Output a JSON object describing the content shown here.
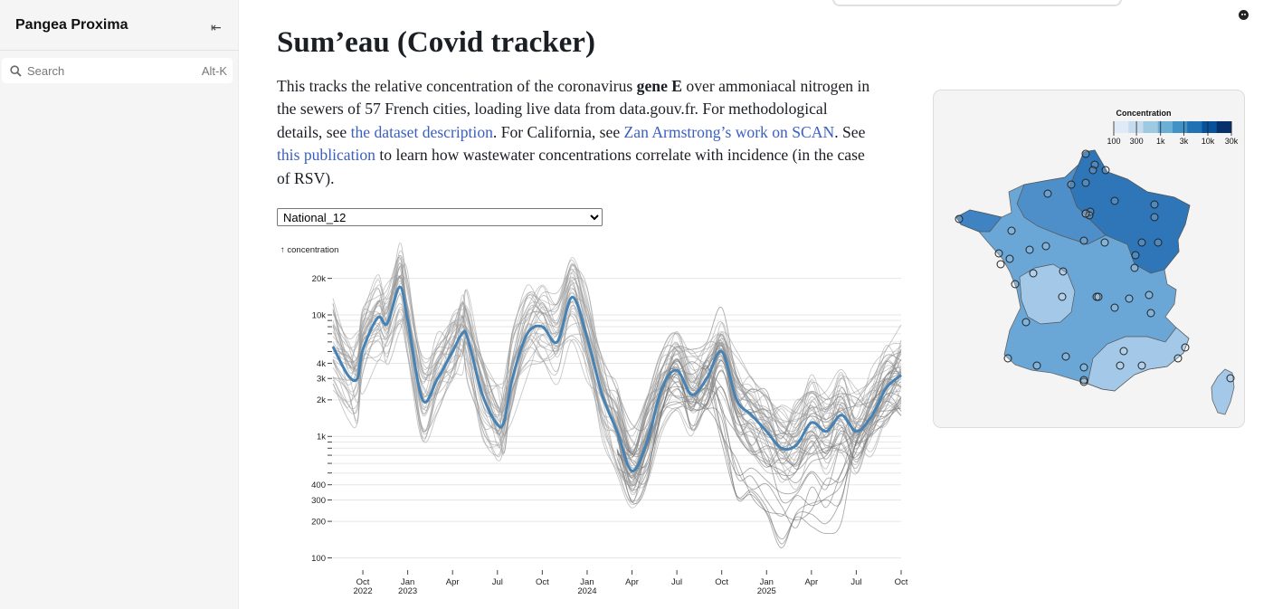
{
  "sidebar": {
    "brand": "Pangea Proxima",
    "collapse_glyph": "⇤",
    "search": {
      "placeholder": "Search",
      "shortcut": "Alt-K"
    }
  },
  "page": {
    "title": "Sum’eau (Covid tracker)",
    "intro": {
      "p1": "This tracks the relative concentration of the coronavirus ",
      "bold": "gene E",
      "p2": " over ammoniacal nitrogen in the sewers of 57 French cities, loading live data from data.gouv.fr. For methodological details, see ",
      "link1": "the dataset description",
      "p3": ". For California, see ",
      "link2": "Zan Armstrong’s work on SCAN",
      "p4": ". See ",
      "link3": "this publication",
      "p5": " to learn how wastewater concentrations correlate with incidence (in the case of RSV)."
    },
    "station_select": {
      "selected": "National_12"
    }
  },
  "colors": {
    "accent": "#4682b4",
    "link": "#3b5fc0",
    "gray_line": "#888888"
  },
  "chart_data": {
    "type": "line",
    "ylabel": "↑ concentration",
    "yscale": "log",
    "ylim": [
      85,
      24000
    ],
    "yticks": [
      {
        "v": 100,
        "label": "100"
      },
      {
        "v": 200,
        "label": "200"
      },
      {
        "v": 300,
        "label": "300"
      },
      {
        "v": 400,
        "label": "400"
      },
      {
        "v": 500,
        "label": ""
      },
      {
        "v": 600,
        "label": ""
      },
      {
        "v": 700,
        "label": ""
      },
      {
        "v": 800,
        "label": ""
      },
      {
        "v": 900,
        "label": ""
      },
      {
        "v": 1000,
        "label": "1k"
      },
      {
        "v": 2000,
        "label": "2k"
      },
      {
        "v": 3000,
        "label": "3k"
      },
      {
        "v": 4000,
        "label": "4k"
      },
      {
        "v": 5000,
        "label": ""
      },
      {
        "v": 6000,
        "label": ""
      },
      {
        "v": 7000,
        "label": ""
      },
      {
        "v": 8000,
        "label": ""
      },
      {
        "v": 9000,
        "label": ""
      },
      {
        "v": 10000,
        "label": "10k"
      },
      {
        "v": 20000,
        "label": "20k"
      }
    ],
    "x_start": "2022-08",
    "x_end": "2025-10",
    "xticks": [
      {
        "m": "2022-10",
        "l1": "Oct",
        "l2": "2022"
      },
      {
        "m": "2023-01",
        "l1": "Jan",
        "l2": "2023"
      },
      {
        "m": "2023-04",
        "l1": "Apr",
        "l2": ""
      },
      {
        "m": "2023-07",
        "l1": "Jul",
        "l2": ""
      },
      {
        "m": "2023-10",
        "l1": "Oct",
        "l2": ""
      },
      {
        "m": "2024-01",
        "l1": "Jan",
        "l2": "2024"
      },
      {
        "m": "2024-04",
        "l1": "Apr",
        "l2": ""
      },
      {
        "m": "2024-07",
        "l1": "Jul",
        "l2": ""
      },
      {
        "m": "2024-10",
        "l1": "Oct",
        "l2": ""
      },
      {
        "m": "2025-01",
        "l1": "Jan",
        "l2": "2025"
      },
      {
        "m": "2025-04",
        "l1": "Apr",
        "l2": ""
      },
      {
        "m": "2025-07",
        "l1": "Jul",
        "l2": ""
      },
      {
        "m": "2025-10",
        "l1": "Oct",
        "l2": ""
      }
    ],
    "series": [
      {
        "name": "National_12",
        "highlighted": true,
        "points": [
          [
            "2022-08",
            5500
          ],
          [
            "2022-09",
            3200
          ],
          [
            "2022-09-20",
            3000
          ],
          [
            "2022-10",
            5200
          ],
          [
            "2022-11",
            9500
          ],
          [
            "2022-11-20",
            8500
          ],
          [
            "2022-12-15",
            17000
          ],
          [
            "2023-01",
            9000
          ],
          [
            "2023-02",
            2000
          ],
          [
            "2023-03",
            3000
          ],
          [
            "2023-04",
            5000
          ],
          [
            "2023-04-20",
            7000
          ],
          [
            "2023-05",
            6500
          ],
          [
            "2023-06",
            2200
          ],
          [
            "2023-07",
            1250
          ],
          [
            "2023-07-15",
            1350
          ],
          [
            "2023-08",
            3000
          ],
          [
            "2023-09",
            7000
          ],
          [
            "2023-10",
            8000
          ],
          [
            "2023-11",
            6000
          ],
          [
            "2023-12",
            14000
          ],
          [
            "2024-01",
            6500
          ],
          [
            "2024-02",
            2200
          ],
          [
            "2024-03",
            1100
          ],
          [
            "2024-04",
            520
          ],
          [
            "2024-05",
            900
          ],
          [
            "2024-06",
            2500
          ],
          [
            "2024-07",
            3500
          ],
          [
            "2024-08",
            2200
          ],
          [
            "2024-09",
            3000
          ],
          [
            "2024-10",
            5000
          ],
          [
            "2024-11",
            2000
          ],
          [
            "2024-12",
            1500
          ],
          [
            "2025-01",
            1100
          ],
          [
            "2025-02",
            800
          ],
          [
            "2025-03",
            850
          ],
          [
            "2025-04",
            1300
          ],
          [
            "2025-05",
            1100
          ],
          [
            "2025-06",
            1500
          ],
          [
            "2025-07",
            1100
          ],
          [
            "2025-08",
            1450
          ],
          [
            "2025-09",
            2500
          ],
          [
            "2025-10",
            3200
          ]
        ]
      }
    ],
    "other_series_note": "57 city series in gray",
    "other_series_count": 57
  },
  "map": {
    "legend_title": "Concentration",
    "legend_ticks": [
      "100",
      "300",
      "1k",
      "3k",
      "10k",
      "30k"
    ]
  }
}
